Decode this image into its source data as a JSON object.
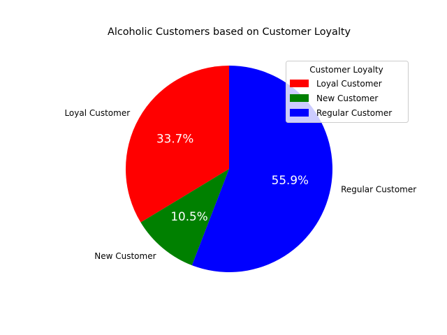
{
  "chart_data": {
    "type": "pie",
    "title": "Alcoholic Customers based on Customer Loyalty",
    "legend_title": "Customer Loyalty",
    "legend_position": "top-right",
    "categories": [
      "Loyal Customer",
      "New Customer",
      "Regular Customer"
    ],
    "values": [
      33.7,
      10.5,
      55.9
    ],
    "percent_labels": [
      "33.7%",
      "10.5%",
      "55.9%"
    ],
    "colors": [
      "#ff0000",
      "#008000",
      "#0000ff"
    ],
    "start_angle_deg": 90,
    "direction": "counterclockwise"
  }
}
